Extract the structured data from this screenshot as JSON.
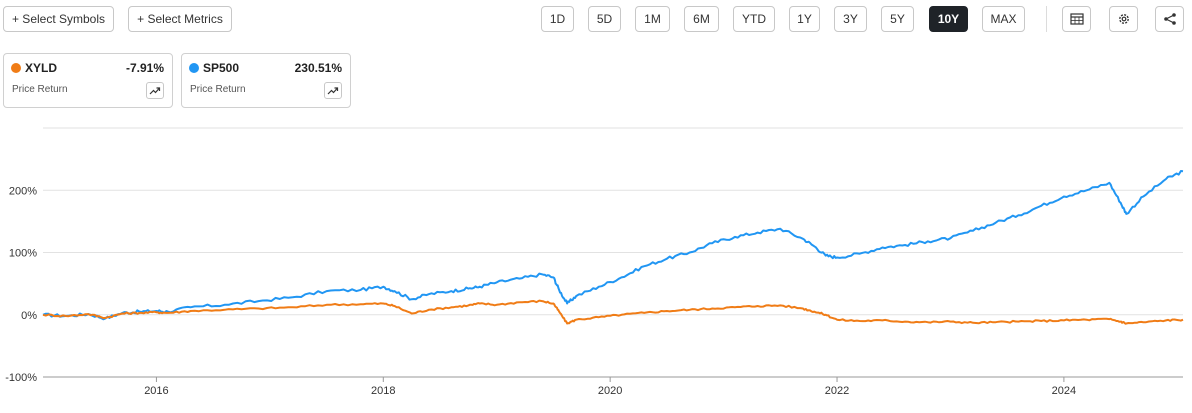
{
  "toolbar": {
    "select_symbols": "+ Select Symbols",
    "select_metrics": "+ Select Metrics",
    "ranges": [
      "1D",
      "5D",
      "1M",
      "6M",
      "YTD",
      "1Y",
      "3Y",
      "5Y",
      "10Y",
      "MAX"
    ],
    "active_range": "10Y",
    "icons": [
      "table-icon",
      "gear-icon",
      "share-icon"
    ]
  },
  "legend": [
    {
      "symbol": "XYLD",
      "value": "-7.91%",
      "metric": "Price Return",
      "color": "#f07c16"
    },
    {
      "symbol": "SP500",
      "value": "230.51%",
      "metric": "Price Return",
      "color": "#2196f3"
    }
  ],
  "chart_data": {
    "type": "line",
    "ylim": [
      -100,
      300
    ],
    "yticks": [
      -100,
      0,
      100,
      200
    ],
    "ytick_labels": [
      "-100%",
      "0%",
      "100%",
      "200%"
    ],
    "xlim": [
      2015.0,
      2025.05
    ],
    "xticks": [
      2016,
      2018,
      2020,
      2022,
      2024
    ],
    "xtick_labels": [
      "2016",
      "2018",
      "2020",
      "2022",
      "2024"
    ],
    "grid": true,
    "series": [
      {
        "name": "SP500",
        "color": "#2196f3",
        "x": [
          2015.0,
          2015.2,
          2015.4,
          2015.55,
          2015.7,
          2015.85,
          2016.0,
          2016.1,
          2016.3,
          2016.6,
          2016.9,
          2017.2,
          2017.5,
          2017.8,
          2018.0,
          2018.1,
          2018.25,
          2018.4,
          2018.6,
          2018.75,
          2018.85,
          2019.0,
          2019.2,
          2019.4,
          2019.5,
          2019.55,
          2019.62,
          2019.7,
          2019.9,
          2020.1,
          2020.3,
          2020.5,
          2020.7,
          2020.9,
          2021.1,
          2021.3,
          2021.5,
          2021.7,
          2021.8,
          2021.9,
          2022.0,
          2022.2,
          2022.4,
          2022.6,
          2022.8,
          2023.0,
          2023.2,
          2023.4,
          2023.6,
          2023.8,
          2024.0,
          2024.2,
          2024.4,
          2024.5,
          2024.55,
          2024.7,
          2024.9,
          2025.05
        ],
        "y": [
          0,
          -2,
          1,
          -6,
          3,
          5,
          6,
          5,
          12,
          16,
          22,
          28,
          38,
          40,
          45,
          38,
          25,
          33,
          38,
          42,
          45,
          52,
          58,
          65,
          60,
          40,
          18,
          30,
          45,
          60,
          78,
          90,
          100,
          115,
          125,
          132,
          138,
          122,
          110,
          95,
          92,
          98,
          108,
          112,
          118,
          123,
          135,
          148,
          160,
          175,
          190,
          200,
          212,
          180,
          162,
          190,
          218,
          230.51
        ]
      },
      {
        "name": "XYLD",
        "color": "#f07c16",
        "x": [
          2015.0,
          2015.2,
          2015.4,
          2015.55,
          2015.7,
          2015.85,
          2016.0,
          2016.1,
          2016.3,
          2016.6,
          2016.9,
          2017.2,
          2017.5,
          2017.8,
          2018.0,
          2018.1,
          2018.25,
          2018.4,
          2018.6,
          2018.75,
          2018.85,
          2019.0,
          2019.2,
          2019.4,
          2019.5,
          2019.55,
          2019.62,
          2019.7,
          2019.9,
          2020.1,
          2020.3,
          2020.5,
          2020.7,
          2020.9,
          2021.1,
          2021.3,
          2021.5,
          2021.7,
          2021.8,
          2021.9,
          2022.0,
          2022.2,
          2022.4,
          2022.6,
          2022.8,
          2023.0,
          2023.2,
          2023.4,
          2023.6,
          2023.8,
          2024.0,
          2024.2,
          2024.4,
          2024.5,
          2024.55,
          2024.7,
          2024.9,
          2025.05
        ],
        "y": [
          0,
          -2,
          1,
          -5,
          2,
          3,
          4,
          3,
          6,
          8,
          10,
          12,
          16,
          17,
          18,
          14,
          2,
          8,
          12,
          15,
          18,
          16,
          20,
          22,
          18,
          5,
          -14,
          -8,
          -4,
          0,
          3,
          6,
          8,
          10,
          12,
          14,
          15,
          10,
          5,
          0,
          -8,
          -10,
          -9,
          -11,
          -12,
          -11,
          -13,
          -12,
          -11,
          -10,
          -9,
          -8,
          -7,
          -11,
          -14,
          -12,
          -9,
          -7.91
        ]
      }
    ]
  }
}
